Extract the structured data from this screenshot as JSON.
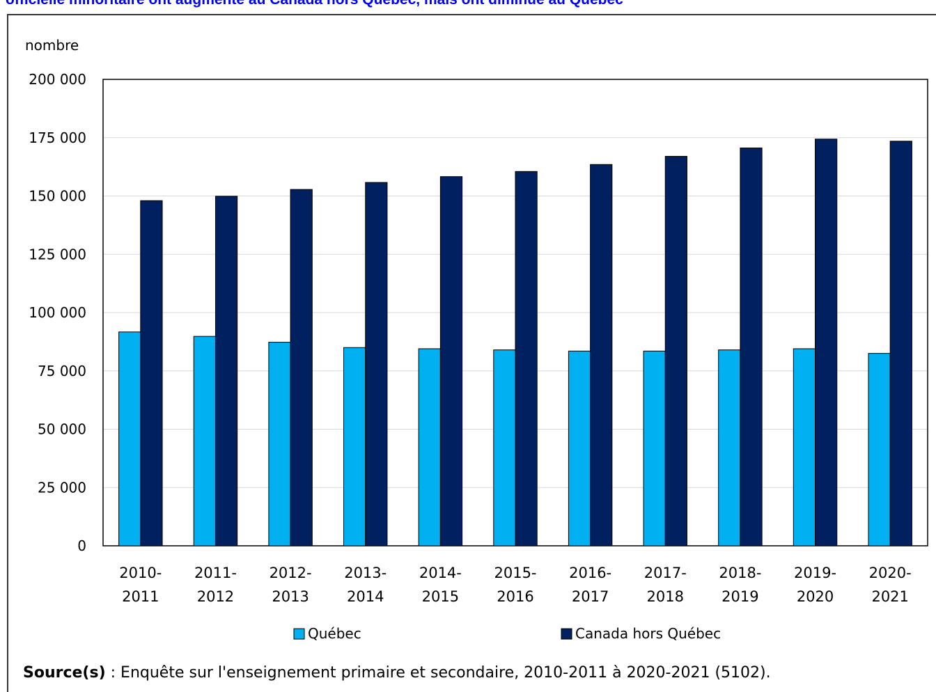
{
  "title": "officielle minoritaire ont augmenté au Canada hors Québec, mais ont diminué au Québec",
  "source": {
    "label": "Source(s)",
    "separator": " : ",
    "text": "Enquête sur l'enseignement primaire et secondaire, 2010-2011 à 2020-2021 (5102)."
  },
  "chart_data": {
    "type": "bar",
    "ylabel": "nombre",
    "ylim": [
      0,
      200000
    ],
    "yticks": [
      "0",
      "25 000",
      "50 000",
      "75 000",
      "100 000",
      "125 000",
      "150 000",
      "175 000",
      "200 000"
    ],
    "categories": [
      [
        "2010-",
        "2011"
      ],
      [
        "2011-",
        "2012"
      ],
      [
        "2012-",
        "2013"
      ],
      [
        "2013-",
        "2014"
      ],
      [
        "2014-",
        "2015"
      ],
      [
        "2015-",
        "2016"
      ],
      [
        "2016-",
        "2017"
      ],
      [
        "2017-",
        "2018"
      ],
      [
        "2018-",
        "2019"
      ],
      [
        "2019-",
        "2020"
      ],
      [
        "2020-",
        "2021"
      ]
    ],
    "series": [
      {
        "name": "Québec",
        "color": "#00b0f0",
        "values": [
          91700,
          89800,
          87300,
          85000,
          84500,
          84000,
          83500,
          83500,
          84000,
          84500,
          82500
        ]
      },
      {
        "name": "Canada hors Québec",
        "color": "#002060",
        "values": [
          148000,
          149900,
          152800,
          155800,
          158300,
          160500,
          163500,
          167000,
          170600,
          174400,
          173500
        ]
      }
    ],
    "grid": true,
    "legend_position": "bottom"
  }
}
